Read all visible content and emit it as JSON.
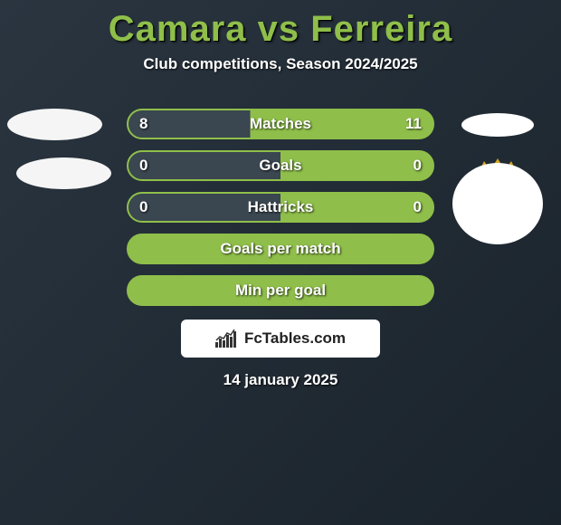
{
  "title": "Camara vs Ferreira",
  "subtitle": "Club competitions, Season 2024/2025",
  "accent_color": "#8fbf4a",
  "text_color": "#ffffff",
  "row_border_color": "#8fbf4a",
  "row_fill_dark": "#3a4650",
  "rows": [
    {
      "label": "Matches",
      "left": "8",
      "right": "11",
      "left_pct": 0.4,
      "left_fill": "#3a4650",
      "right_fill": "#8fbf4a"
    },
    {
      "label": "Goals",
      "left": "0",
      "right": "0",
      "left_pct": 0.5,
      "left_fill": "#3a4650",
      "right_fill": "#8fbf4a"
    },
    {
      "label": "Hattricks",
      "left": "0",
      "right": "0",
      "left_pct": 0.5,
      "left_fill": "#3a4650",
      "right_fill": "#8fbf4a"
    },
    {
      "label": "Goals per match",
      "left": "",
      "right": "",
      "left_pct": 1.0,
      "left_fill": "#8fbf4a",
      "right_fill": "#8fbf4a"
    },
    {
      "label": "Min per goal",
      "left": "",
      "right": "",
      "left_pct": 1.0,
      "left_fill": "#8fbf4a",
      "right_fill": "#8fbf4a"
    }
  ],
  "branding_text": "FcTables.com",
  "date": "14 january 2025",
  "crest": {
    "crown_color": "#d4a723",
    "shield_left": "#d43a2a",
    "shield_right": "#2a5aa0",
    "outline": "#1a1a1a",
    "dot_color": "#2a5aa0",
    "check_color": "#ffffff"
  }
}
